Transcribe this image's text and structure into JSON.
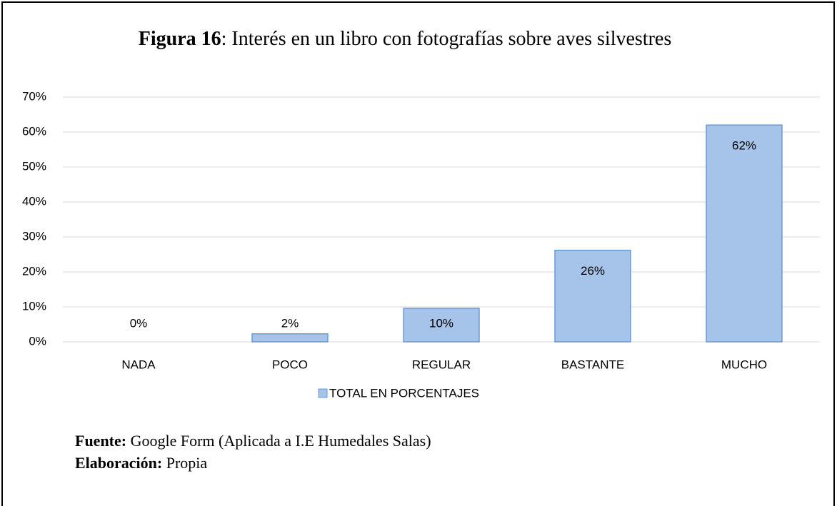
{
  "chart_data": {
    "type": "bar",
    "title_label": "Figura 16",
    "title": ": Interés en un libro con fotografías sobre aves silvestres",
    "categories": [
      "NADA",
      "POCO",
      "REGULAR",
      "BASTANTE",
      "MUCHO"
    ],
    "series": [
      {
        "name": "TOTAL EN PORCENTAJES",
        "color": "#a6c3e9",
        "values": [
          0,
          2.3,
          9.6,
          26.2,
          62
        ],
        "value_labels": [
          "0%",
          "2%",
          "10%",
          "26%",
          "62%"
        ]
      }
    ],
    "ylim": [
      0,
      70
    ],
    "yticks": [
      {
        "value": 0,
        "label": "0%"
      },
      {
        "value": 10,
        "label": "10%"
      },
      {
        "value": 20,
        "label": "20%"
      },
      {
        "value": 30,
        "label": "30%"
      },
      {
        "value": 40,
        "label": "40%"
      },
      {
        "value": 50,
        "label": "50%"
      },
      {
        "value": 60,
        "label": "60%"
      },
      {
        "value": 70,
        "label": "70%"
      }
    ],
    "grid": true,
    "legend": "bottom",
    "notes": [
      {
        "label": "Fuente:",
        "text": " Google Form (Aplicada a I.E Humedales Salas)"
      },
      {
        "label": "Elaboración:",
        "text": " Propia"
      }
    ]
  }
}
